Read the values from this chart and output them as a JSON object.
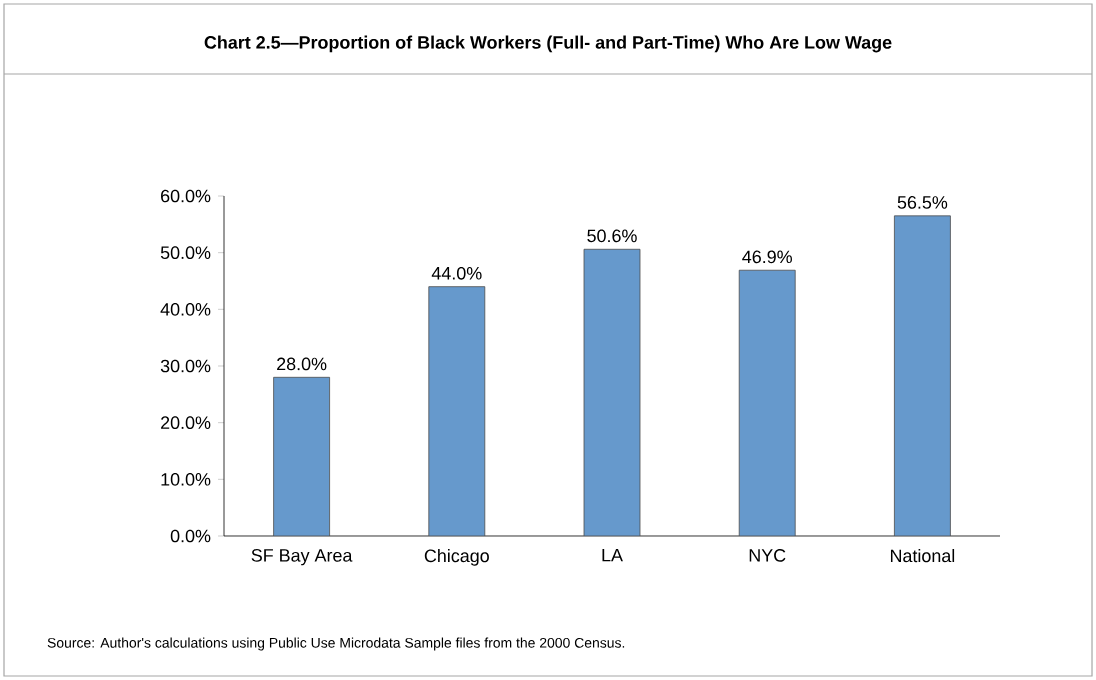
{
  "chart_data": {
    "type": "bar",
    "title": "Chart 2.5—Proportion of Black Workers (Full- and Part-Time) Who Are Low Wage",
    "categories": [
      "SF Bay Area",
      "Chicago",
      "LA",
      "NYC",
      "National"
    ],
    "values": [
      28.0,
      44.0,
      50.6,
      46.9,
      56.5
    ],
    "value_labels": [
      "28.0%",
      "44.0%",
      "50.6%",
      "46.9%",
      "56.5%"
    ],
    "color": "#6699cc",
    "ylim": [
      0,
      60
    ],
    "yticks": [
      {
        "value": 0,
        "label": "0.0%"
      },
      {
        "value": 10,
        "label": "10.0%"
      },
      {
        "value": 20,
        "label": "20.0%"
      },
      {
        "value": 30,
        "label": "30.0%"
      },
      {
        "value": 40,
        "label": "40.0%"
      },
      {
        "value": 50,
        "label": "50.0%"
      },
      {
        "value": 60,
        "label": "60.0%"
      }
    ],
    "annotations": [
      "Source: Author's calculations using Public Use Microdata Sample files from the 2000 Census."
    ]
  }
}
